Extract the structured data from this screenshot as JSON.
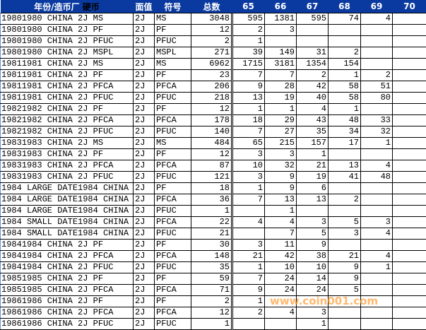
{
  "header": {
    "col_name": "年份/造币厂",
    "col_name_extra": "硬币",
    "col_face": "面值",
    "col_symbol": "符号",
    "col_total": "总数",
    "grades": [
      "65",
      "66",
      "67",
      "68",
      "69",
      "70"
    ]
  },
  "rows": [
    [
      "19801980 CHINA 2J MS",
      "2J",
      "MS",
      "3048",
      "595",
      "1381",
      "595",
      "74",
      "4",
      ""
    ],
    [
      "19801980 CHINA 2J PF",
      "2J",
      "PF",
      "12",
      "2",
      "3",
      "",
      "",
      "",
      ""
    ],
    [
      "19801980 CHINA 2J PFUC",
      "2J",
      "PFUC",
      "2",
      "1",
      "",
      "",
      "",
      "",
      ""
    ],
    [
      "19801980 CHINA 2J MSPL",
      "2J",
      "MSPL",
      "271",
      "39",
      "149",
      "31",
      "2",
      "",
      ""
    ],
    [
      "19811981 CHINA 2J MS",
      "2J",
      "MS",
      "6962",
      "1715",
      "3181",
      "1354",
      "154",
      "",
      ""
    ],
    [
      "19811981 CHINA 2J PF",
      "2J",
      "PF",
      "23",
      "7",
      "7",
      "2",
      "1",
      "2",
      ""
    ],
    [
      "19811981 CHINA 2J PFCA",
      "2J",
      "PFCA",
      "206",
      "9",
      "28",
      "42",
      "58",
      "51",
      ""
    ],
    [
      "19811981 CHINA 2J PFUC",
      "2J",
      "PFUC",
      "218",
      "13",
      "19",
      "40",
      "58",
      "80",
      ""
    ],
    [
      "19821982 CHINA 2J PF",
      "2J",
      "PF",
      "12",
      "1",
      "1",
      "4",
      "1",
      "",
      ""
    ],
    [
      "19821982 CHINA 2J PFCA",
      "2J",
      "PFCA",
      "178",
      "18",
      "29",
      "43",
      "48",
      "33",
      ""
    ],
    [
      "19821982 CHINA 2J PFUC",
      "2J",
      "PFUC",
      "140",
      "7",
      "27",
      "35",
      "34",
      "32",
      ""
    ],
    [
      "19831983 CHINA 2J MS",
      "2J",
      "MS",
      "484",
      "65",
      "215",
      "157",
      "17",
      "1",
      ""
    ],
    [
      "19831983 CHINA 2J PF",
      "2J",
      "PF",
      "12",
      "3",
      "3",
      "1",
      "",
      "",
      ""
    ],
    [
      "19831983 CHINA 2J PFCA",
      "2J",
      "PFCA",
      "87",
      "10",
      "32",
      "21",
      "13",
      "4",
      ""
    ],
    [
      "19831983 CHINA 2J PFUC",
      "2J",
      "PFUC",
      "121",
      "3",
      "9",
      "19",
      "41",
      "48",
      ""
    ],
    [
      "1984 LARGE DATE1984 CHINA",
      "2J",
      "PF",
      "18",
      "1",
      "9",
      "6",
      "",
      "",
      ""
    ],
    [
      "1984 LARGE DATE1984 CHINA",
      "2J",
      "PFCA",
      "36",
      "7",
      "13",
      "13",
      "2",
      "",
      ""
    ],
    [
      "1984 LARGE DATE1984 CHINA",
      "2J",
      "PFUC",
      "1",
      "",
      "1",
      "",
      "",
      "",
      ""
    ],
    [
      "1984 SMALL DATE1984 CHINA",
      "2J",
      "PFCA",
      "22",
      "4",
      "4",
      "3",
      "5",
      "3",
      ""
    ],
    [
      "1984 SMALL DATE1984 CHINA",
      "2J",
      "PFUC",
      "21",
      "",
      "7",
      "5",
      "3",
      "4",
      ""
    ],
    [
      "19841984 CHINA 2J PF",
      "2J",
      "PF",
      "30",
      "3",
      "11",
      "9",
      "",
      "",
      ""
    ],
    [
      "19841984 CHINA 2J PFCA",
      "2J",
      "PFCA",
      "148",
      "21",
      "42",
      "38",
      "21",
      "4",
      ""
    ],
    [
      "19841984 CHINA 2J PFUC",
      "2J",
      "PFUC",
      "35",
      "1",
      "10",
      "10",
      "9",
      "1",
      ""
    ],
    [
      "19851985 CHINA 2J PF",
      "2J",
      "PF",
      "59",
      "7",
      "24",
      "14",
      "9",
      "",
      ""
    ],
    [
      "19851985 CHINA 2J PFCA",
      "2J",
      "PFCA",
      "71",
      "9",
      "24",
      "24",
      "5",
      "",
      ""
    ],
    [
      "19861986 CHINA 2J PF",
      "2J",
      "PF",
      "2",
      "1",
      "",
      "",
      "",
      "",
      ""
    ],
    [
      "19861986 CHINA 2J PFCA",
      "2J",
      "PFCA",
      "12",
      "2",
      "4",
      "3",
      "",
      "",
      ""
    ],
    [
      "19861986 CHINA 2J PFUC",
      "2J",
      "PFUC",
      "1",
      "",
      "",
      "1",
      "",
      "",
      ""
    ]
  ],
  "watermark": "www.coin001.com",
  "colors": {
    "header_bg": "#0a3aa0",
    "header_text": "#ffffff",
    "watermark": "#ffa03c"
  }
}
